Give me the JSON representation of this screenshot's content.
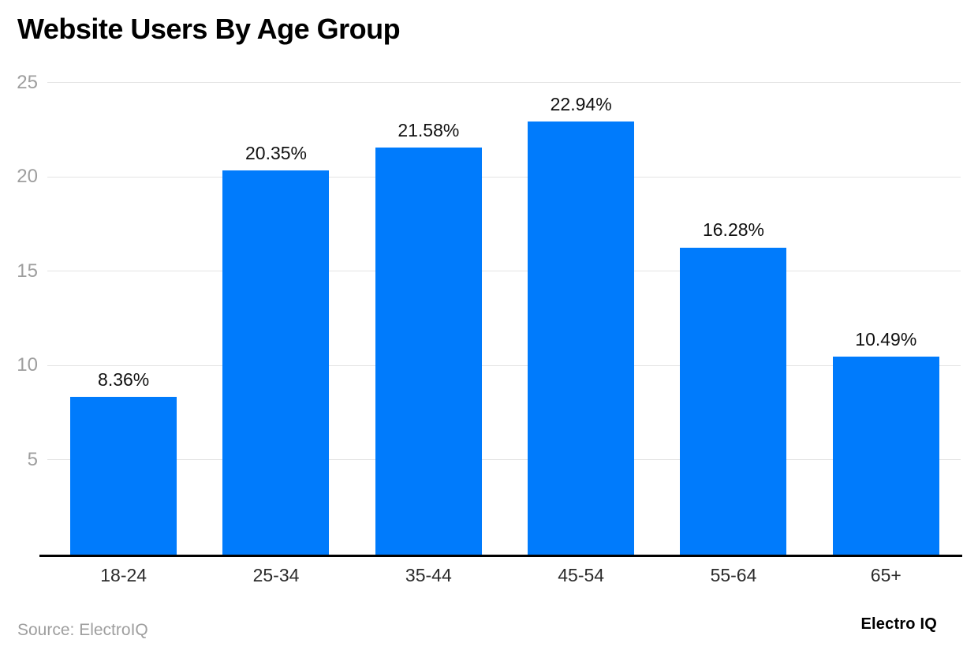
{
  "chart_data": {
    "type": "bar",
    "title": "Website Users By Age Group",
    "categories": [
      "18-24",
      "25-34",
      "35-44",
      "45-54",
      "55-64",
      "65+"
    ],
    "values": [
      8.36,
      20.35,
      21.58,
      22.94,
      16.28,
      10.49
    ],
    "value_labels": [
      "8.36%",
      "20.35%",
      "21.58%",
      "22.94%",
      "16.28%",
      "10.49%"
    ],
    "xlabel": "",
    "ylabel": "",
    "ylim": [
      0,
      25
    ],
    "yticks": [
      5,
      10,
      15,
      20,
      25
    ],
    "grid": true,
    "legend_position": "none",
    "bar_color": "#007bfc"
  },
  "footer": {
    "source": "Source: ElectroIQ",
    "brand": "Electro IQ"
  },
  "colors": {
    "background": "#ffffff",
    "bar": "#007bfc",
    "grid_line": "#e4e4e4",
    "axis_line": "#000000",
    "y_tick_label": "#9e9e9e",
    "x_tick_label": "#2b2b2b",
    "value_label": "#111111",
    "title": "#000000",
    "source_text": "#9e9e9e",
    "brand_text": "#000000"
  }
}
